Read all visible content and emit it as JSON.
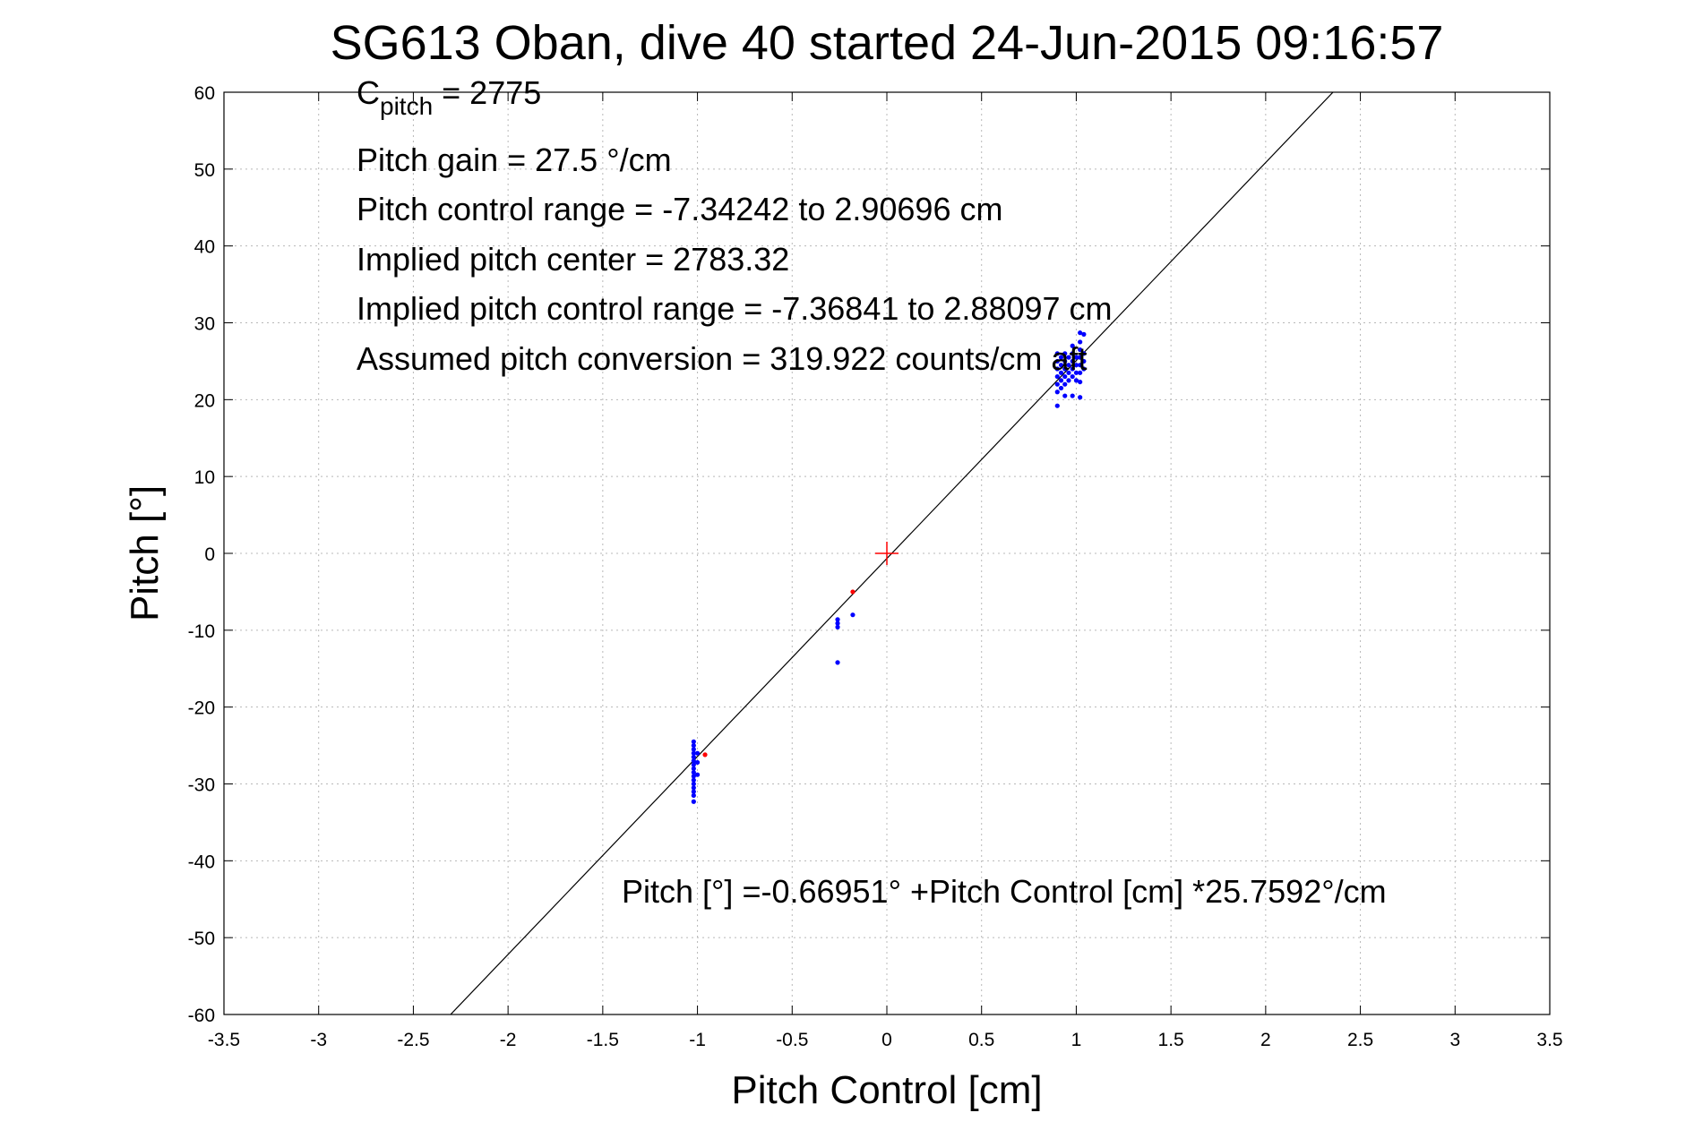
{
  "chart_data": {
    "type": "scatter",
    "title": "SG613 Oban, dive 40 started 24-Jun-2015 09:16:57",
    "xlabel": "Pitch Control [cm]",
    "ylabel": "Pitch [°]",
    "xlim": [
      -3.5,
      3.5
    ],
    "ylim": [
      -60,
      60
    ],
    "grid": true,
    "x_ticks": [
      -3.5,
      -3,
      -2.5,
      -2,
      -1.5,
      -1,
      -0.5,
      0,
      0.5,
      1,
      1.5,
      2,
      2.5,
      3,
      3.5
    ],
    "y_ticks": [
      -60,
      -50,
      -40,
      -30,
      -20,
      -10,
      0,
      10,
      20,
      30,
      40,
      50,
      60
    ],
    "x_tick_labels": [
      "-3.5",
      "-3",
      "-2.5",
      "-2",
      "-1.5",
      "-1",
      "-0.5",
      "0",
      "0.5",
      "1",
      "1.5",
      "2",
      "2.5",
      "3",
      "3.5"
    ],
    "y_tick_labels": [
      "-60",
      "-50",
      "-40",
      "-30",
      "-20",
      "-10",
      "0",
      "10",
      "20",
      "30",
      "40",
      "50",
      "60"
    ],
    "annotations": {
      "c_pitch_main": "C",
      "c_pitch_sub": "pitch",
      "c_pitch_value": " = 2775",
      "lines": [
        "Pitch gain = 27.5 °/cm",
        "Pitch control range = -7.34242 to 2.90696 cm",
        "Implied pitch center = 2783.32",
        "Implied pitch control range = -7.36841 to 2.88097 cm",
        "Assumed pitch conversion = 319.922 counts/cm aft"
      ],
      "fit_equation": "Pitch [°] =-0.66951° +Pitch Control [cm] *25.7592°/cm"
    },
    "fit_line": {
      "intercept": -0.66951,
      "slope": 25.7592,
      "color": "#000000"
    },
    "center_marker": {
      "x": 0,
      "y": 0,
      "color": "#ff0000"
    },
    "series": [
      {
        "color": "#0000ff",
        "points": [
          [
            -1.02,
            -24.5
          ],
          [
            -1.02,
            -25.0
          ],
          [
            -1.02,
            -25.5
          ],
          [
            -1.02,
            -26.0
          ],
          [
            -1.02,
            -26.5
          ],
          [
            -1.02,
            -27.0
          ],
          [
            -1.02,
            -27.5
          ],
          [
            -1.02,
            -28.0
          ],
          [
            -1.02,
            -28.5
          ],
          [
            -1.02,
            -29.0
          ],
          [
            -1.02,
            -29.5
          ],
          [
            -1.02,
            -30.0
          ],
          [
            -1.02,
            -30.5
          ],
          [
            -1.02,
            -31.0
          ],
          [
            -1.02,
            -31.5
          ],
          [
            -1.02,
            -32.3
          ],
          [
            -1.0,
            -27.2
          ],
          [
            -1.0,
            -28.8
          ],
          [
            -1.0,
            -26.0
          ],
          [
            -0.26,
            -8.6
          ],
          [
            -0.26,
            -9.1
          ],
          [
            -0.26,
            -9.6
          ],
          [
            -0.26,
            -14.2
          ],
          [
            -0.18,
            -8.0
          ],
          [
            0.9,
            19.2
          ],
          [
            0.9,
            21.0
          ],
          [
            0.9,
            22.0
          ],
          [
            0.9,
            23.0
          ],
          [
            0.9,
            24.0
          ],
          [
            0.9,
            25.0
          ],
          [
            0.9,
            26.0
          ],
          [
            0.92,
            21.5
          ],
          [
            0.92,
            22.5
          ],
          [
            0.92,
            23.5
          ],
          [
            0.92,
            24.5
          ],
          [
            0.92,
            25.5
          ],
          [
            0.94,
            20.5
          ],
          [
            0.94,
            22.0
          ],
          [
            0.94,
            23.0
          ],
          [
            0.94,
            24.0
          ],
          [
            0.94,
            25.0
          ],
          [
            0.94,
            26.0
          ],
          [
            0.96,
            22.5
          ],
          [
            0.96,
            23.5
          ],
          [
            0.96,
            24.5
          ],
          [
            0.96,
            25.5
          ],
          [
            0.98,
            20.5
          ],
          [
            0.98,
            23.0
          ],
          [
            0.98,
            24.0
          ],
          [
            0.98,
            25.0
          ],
          [
            0.98,
            26.0
          ],
          [
            0.98,
            27.0
          ],
          [
            1.0,
            22.5
          ],
          [
            1.0,
            23.5
          ],
          [
            1.0,
            24.5
          ],
          [
            1.0,
            25.5
          ],
          [
            1.02,
            20.3
          ],
          [
            1.02,
            22.3
          ],
          [
            1.02,
            23.5
          ],
          [
            1.02,
            24.5
          ],
          [
            1.02,
            25.5
          ],
          [
            1.02,
            26.5
          ],
          [
            1.02,
            27.5
          ],
          [
            1.02,
            28.7
          ],
          [
            1.04,
            24.0
          ],
          [
            1.04,
            25.0
          ],
          [
            1.04,
            26.0
          ],
          [
            1.04,
            28.5
          ]
        ]
      },
      {
        "color": "#ff0000",
        "points": [
          [
            -0.96,
            -26.2
          ],
          [
            -0.18,
            -5.0
          ]
        ]
      }
    ]
  }
}
